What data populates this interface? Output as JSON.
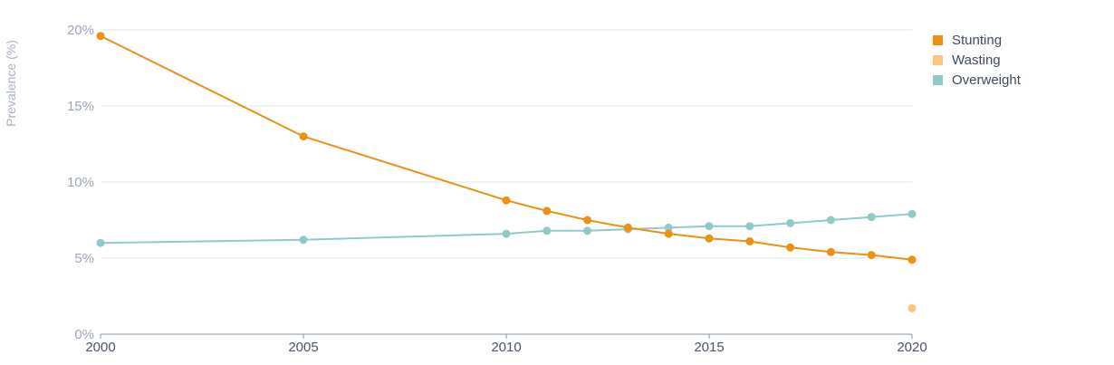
{
  "chart_data": {
    "type": "line",
    "ylabel": "Prevalence (%)",
    "xlim": [
      2000,
      2020
    ],
    "ylim": [
      0,
      20
    ],
    "x_ticks": [
      "2000",
      "2005",
      "2010",
      "2015",
      "2020"
    ],
    "y_ticks": [
      "0%",
      "5%",
      "10%",
      "15%",
      "20%"
    ],
    "grid": "horizontal",
    "legend_position": "top-right",
    "series": [
      {
        "name": "Stunting",
        "color": "#ee9110",
        "points": [
          {
            "x": 2000,
            "y": 19.6
          },
          {
            "x": 2005,
            "y": 13.0
          },
          {
            "x": 2010,
            "y": 8.8
          },
          {
            "x": 2011,
            "y": 8.1
          },
          {
            "x": 2012,
            "y": 7.5
          },
          {
            "x": 2013,
            "y": 7.0
          },
          {
            "x": 2014,
            "y": 6.6
          },
          {
            "x": 2015,
            "y": 6.3
          },
          {
            "x": 2016,
            "y": 6.1
          },
          {
            "x": 2017,
            "y": 5.7
          },
          {
            "x": 2018,
            "y": 5.4
          },
          {
            "x": 2019,
            "y": 5.2
          },
          {
            "x": 2020,
            "y": 4.9
          }
        ]
      },
      {
        "name": "Wasting",
        "color": "#fbc57c",
        "points": [
          {
            "x": 2020,
            "y": 1.7
          }
        ]
      },
      {
        "name": "Overweight",
        "color": "#8fcac9",
        "points": [
          {
            "x": 2000,
            "y": 6.0
          },
          {
            "x": 2005,
            "y": 6.2
          },
          {
            "x": 2010,
            "y": 6.6
          },
          {
            "x": 2011,
            "y": 6.8
          },
          {
            "x": 2012,
            "y": 6.8
          },
          {
            "x": 2013,
            "y": 6.9
          },
          {
            "x": 2014,
            "y": 7.0
          },
          {
            "x": 2015,
            "y": 7.1
          },
          {
            "x": 2016,
            "y": 7.1
          },
          {
            "x": 2017,
            "y": 7.3
          },
          {
            "x": 2018,
            "y": 7.5
          },
          {
            "x": 2019,
            "y": 7.7
          },
          {
            "x": 2020,
            "y": 7.9
          }
        ]
      }
    ]
  }
}
